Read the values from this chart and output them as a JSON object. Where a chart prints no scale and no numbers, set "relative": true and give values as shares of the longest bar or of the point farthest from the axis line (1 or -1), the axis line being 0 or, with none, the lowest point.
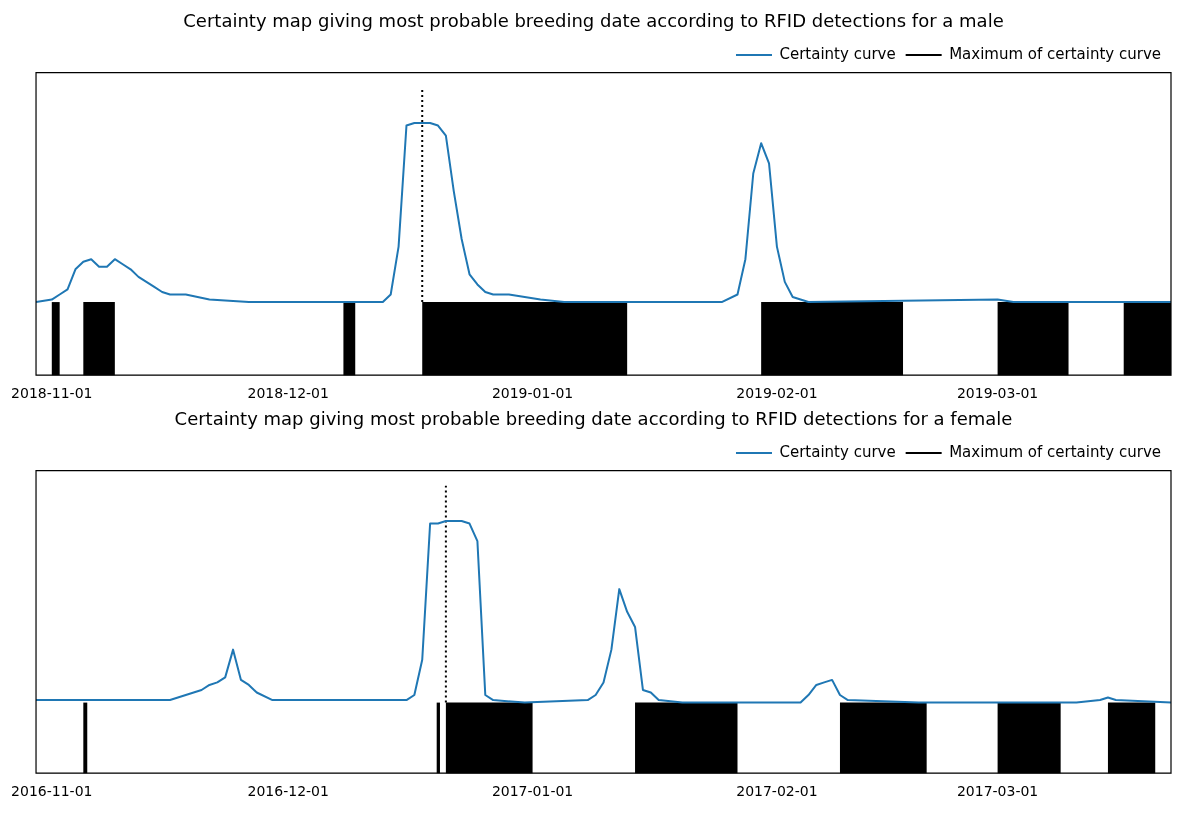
{
  "chart_data": [
    {
      "type": "line",
      "title": "Certainty map giving most probable breeding date according to RFID detections for a male",
      "relative": true,
      "legend": "top right",
      "grid": false,
      "x": [
        "2018-10-30",
        "2018-11-01",
        "2018-11-02",
        "2018-11-03",
        "2018-11-04",
        "2018-11-05",
        "2018-11-06",
        "2018-11-07",
        "2018-11-08",
        "2018-11-09",
        "2018-11-10",
        "2018-11-11",
        "2018-11-12",
        "2018-11-13",
        "2018-11-14",
        "2018-11-15",
        "2018-11-16",
        "2018-11-18",
        "2018-11-21",
        "2018-11-26",
        "2018-12-01",
        "2018-12-08",
        "2018-12-13",
        "2018-12-14",
        "2018-12-15",
        "2018-12-16",
        "2018-12-17",
        "2018-12-18",
        "2018-12-19",
        "2018-12-20",
        "2018-12-21",
        "2018-12-22",
        "2018-12-23",
        "2018-12-24",
        "2018-12-25",
        "2018-12-26",
        "2018-12-27",
        "2018-12-29",
        "2019-01-02",
        "2019-01-05",
        "2019-01-25",
        "2019-01-27",
        "2019-01-28",
        "2019-01-29",
        "2019-01-30",
        "2019-01-31",
        "2019-02-01",
        "2019-02-02",
        "2019-02-03",
        "2019-02-05",
        "2019-03-01",
        "2019-03-03",
        "2019-03-23"
      ],
      "series": [
        {
          "name": "Certainty curve",
          "color": "#1f77b4",
          "values": [
            0.29,
            0.3,
            0.32,
            0.34,
            0.42,
            0.45,
            0.46,
            0.43,
            0.43,
            0.46,
            0.44,
            0.42,
            0.39,
            0.37,
            0.35,
            0.33,
            0.32,
            0.32,
            0.3,
            0.29,
            0.29,
            0.29,
            0.29,
            0.32,
            0.51,
            0.99,
            1,
            1,
            1,
            0.99,
            0.95,
            0.73,
            0.54,
            0.4,
            0.36,
            0.33,
            0.32,
            0.32,
            0.3,
            0.29,
            0.29,
            0.32,
            0.46,
            0.8,
            0.92,
            0.84,
            0.51,
            0.37,
            0.31,
            0.29,
            0.3,
            0.29,
            0.29
          ]
        }
      ],
      "xlim": [
        "2018-10-30",
        "2019-03-23"
      ],
      "xticks": [
        "2018-11-01",
        "2018-12-01",
        "2019-01-01",
        "2019-02-01",
        "2019-03-01"
      ],
      "ref_lines": [
        {
          "axis": "x",
          "value": "2018-12-18",
          "label": "Maximum of certainty curve",
          "color": "#000000",
          "line_style": "dotted"
        }
      ],
      "bands": [
        {
          "axis": "x",
          "from": "2018-11-01",
          "to": "2018-11-02",
          "color": "#000000"
        },
        {
          "axis": "x",
          "from": "2018-11-05",
          "to": "2018-11-09",
          "color": "#000000"
        },
        {
          "axis": "x",
          "from": "2018-12-08",
          "to": "2018-12-09T12:00",
          "color": "#000000"
        },
        {
          "axis": "x",
          "from": "2018-12-18",
          "to": "2019-01-13",
          "color": "#000000"
        },
        {
          "axis": "x",
          "from": "2019-01-30",
          "to": "2019-02-17",
          "color": "#000000"
        },
        {
          "axis": "x",
          "from": "2019-03-01",
          "to": "2019-03-10",
          "color": "#000000"
        },
        {
          "axis": "x",
          "from": "2019-03-17",
          "to": "2019-03-23",
          "color": "#000000"
        }
      ]
    },
    {
      "type": "line",
      "title": "Certainty map giving most probable breeding date according to RFID detections for a female",
      "relative": true,
      "legend": "top right",
      "grid": false,
      "x": [
        "2016-10-30",
        "2016-11-01",
        "2016-11-06",
        "2016-11-16",
        "2016-11-17",
        "2016-11-18",
        "2016-11-19",
        "2016-11-20",
        "2016-11-21",
        "2016-11-22",
        "2016-11-23",
        "2016-11-24",
        "2016-11-25",
        "2016-11-26",
        "2016-11-27",
        "2016-11-29",
        "2016-12-01",
        "2016-12-16",
        "2016-12-17",
        "2016-12-18",
        "2016-12-19",
        "2016-12-20",
        "2016-12-21",
        "2016-12-22",
        "2016-12-23",
        "2016-12-24",
        "2016-12-25",
        "2016-12-26",
        "2016-12-27",
        "2016-12-31",
        "2017-01-08",
        "2017-01-09",
        "2017-01-10",
        "2017-01-11",
        "2017-01-12",
        "2017-01-13",
        "2017-01-14",
        "2017-01-15",
        "2017-01-16",
        "2017-01-17",
        "2017-01-20",
        "2017-02-04",
        "2017-02-05",
        "2017-02-06",
        "2017-02-07",
        "2017-02-08",
        "2017-02-09",
        "2017-02-10",
        "2017-02-19",
        "2017-03-11",
        "2017-03-14",
        "2017-03-15",
        "2017-03-16",
        "2017-03-23"
      ],
      "series": [
        {
          "name": "Certainty curve",
          "color": "#1f77b4",
          "values": [
            0.29,
            0.29,
            0.29,
            0.29,
            0.3,
            0.31,
            0.32,
            0.33,
            0.35,
            0.36,
            0.38,
            0.49,
            0.37,
            0.35,
            0.32,
            0.29,
            0.29,
            0.29,
            0.31,
            0.45,
            0.99,
            0.99,
            1,
            1,
            1,
            0.99,
            0.92,
            0.31,
            0.29,
            0.28,
            0.29,
            0.31,
            0.36,
            0.49,
            0.73,
            0.64,
            0.58,
            0.33,
            0.32,
            0.29,
            0.28,
            0.28,
            0.31,
            0.35,
            0.36,
            0.37,
            0.31,
            0.29,
            0.28,
            0.28,
            0.29,
            0.3,
            0.29,
            0.28
          ]
        }
      ],
      "xlim": [
        "2016-10-30",
        "2017-03-23"
      ],
      "xticks": [
        "2016-11-01",
        "2016-12-01",
        "2017-01-01",
        "2017-02-01",
        "2017-03-01"
      ],
      "ref_lines": [
        {
          "axis": "x",
          "value": "2016-12-21",
          "label": "Maximum of certainty curve",
          "color": "#000000",
          "line_style": "dotted"
        }
      ],
      "bands": [
        {
          "axis": "x",
          "from": "2016-11-05",
          "to": "2016-11-05T12:00",
          "color": "#000000"
        },
        {
          "axis": "x",
          "from": "2016-12-19T20:00",
          "to": "2016-12-20T06:00",
          "color": "#000000"
        },
        {
          "axis": "x",
          "from": "2016-12-21",
          "to": "2017-01-01",
          "color": "#000000"
        },
        {
          "axis": "x",
          "from": "2017-01-14",
          "to": "2017-01-27",
          "color": "#000000"
        },
        {
          "axis": "x",
          "from": "2017-02-09",
          "to": "2017-02-20",
          "color": "#000000"
        },
        {
          "axis": "x",
          "from": "2017-03-01",
          "to": "2017-03-09",
          "color": "#000000"
        },
        {
          "axis": "x",
          "from": "2017-03-15",
          "to": "2017-03-21",
          "color": "#000000"
        }
      ]
    }
  ]
}
